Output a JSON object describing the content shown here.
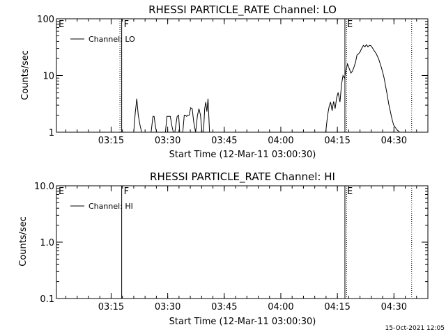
{
  "footer": {
    "timestamp": "15-Oct-2021 12:05"
  },
  "chart_data": [
    {
      "type": "line",
      "title": "RHESSI PARTICLE_RATE Channel: LO",
      "xlabel": "Start Time (12-Mar-11 03:00:30)",
      "ylabel": "Counts/sec",
      "x_unit": "minutes after 03:00:30",
      "x_range": [
        0,
        98.5
      ],
      "x_ticks": [
        {
          "label": "03:15",
          "x": 14.5
        },
        {
          "label": "03:30",
          "x": 29.5
        },
        {
          "label": "03:45",
          "x": 44.5
        },
        {
          "label": "04:00",
          "x": 59.5
        },
        {
          "label": "04:15",
          "x": 74.5
        },
        {
          "label": "04:30",
          "x": 89.5
        }
      ],
      "y_scale": "log",
      "ylim": [
        1,
        100
      ],
      "y_ticks": [
        "1",
        "10",
        "100"
      ],
      "legend": {
        "entry": "Channel: LO",
        "placement": "top-left"
      },
      "markers": [
        {
          "label": "E",
          "x": 0,
          "style": "none"
        },
        {
          "label": "F",
          "x": 17.3,
          "style": "dotted+solid"
        },
        {
          "label": "E",
          "x": 76.5,
          "style": "solid+dotted"
        },
        {
          "label": "",
          "x": 94.2,
          "style": "dotted"
        }
      ],
      "series": [
        {
          "name": "Channel: LO",
          "x": [
            20.5,
            20.9,
            21.3,
            21.7,
            22.2,
            22.6,
            25.1,
            25.6,
            25.9,
            26.3,
            26.6,
            28.9,
            29.3,
            30.2,
            30.6,
            31.0,
            31.4,
            32.0,
            32.4,
            32.7,
            33.5,
            33.9,
            34.2,
            34.5,
            34.8,
            35.2,
            35.6,
            36.0,
            36.4,
            36.9,
            37.4,
            37.8,
            38.2,
            38.6,
            39.0,
            39.3,
            39.6,
            39.9,
            40.2,
            40.6,
            71.4,
            71.9,
            72.3,
            72.7,
            73.1,
            73.5,
            73.9,
            74.3,
            74.7,
            75.2,
            75.6,
            76.0,
            76.4,
            76.8,
            77.2,
            77.6,
            78.1,
            78.5,
            78.9,
            79.3,
            79.7,
            80.1,
            80.5,
            81.0,
            81.4,
            81.8,
            82.2,
            82.6,
            83.0,
            83.4,
            83.9,
            84.3,
            84.7,
            85.1,
            85.5,
            86.0,
            86.5,
            86.9,
            87.3,
            87.7,
            88.1,
            88.5,
            88.9,
            89.2,
            89.5,
            89.9,
            90.3,
            90.7,
            91.0
          ],
          "y": [
            1,
            2.2,
            3.9,
            2.0,
            1.3,
            1,
            1,
            1.9,
            1.9,
            1.2,
            1,
            1,
            1.9,
            1.9,
            1.3,
            1,
            1,
            1.9,
            2.0,
            1,
            1,
            2.0,
            2.0,
            1.9,
            2.0,
            2.0,
            2.7,
            2.6,
            1.5,
            1,
            2.0,
            2.6,
            2.0,
            1,
            1,
            2.6,
            3.4,
            2.3,
            3.9,
            1,
            1,
            2.0,
            2.8,
            3.4,
            2.4,
            3.5,
            2.6,
            4.0,
            5.0,
            3.4,
            7.0,
            10.0,
            9.0,
            12.5,
            16.0,
            13.5,
            11.0,
            12.0,
            14.0,
            17.0,
            23.0,
            24.0,
            26.0,
            30.5,
            34.0,
            32.0,
            35.0,
            32.0,
            34.0,
            33.5,
            30.0,
            27.0,
            25.0,
            22.0,
            19.0,
            15.0,
            11.5,
            9.0,
            6.4,
            4.6,
            3.2,
            2.4,
            1.8,
            1.5,
            1.3,
            1.2,
            1.1,
            1.05,
            1
          ]
        }
      ]
    },
    {
      "type": "line",
      "title": "RHESSI PARTICLE_RATE Channel: HI",
      "xlabel": "Start Time (12-Mar-11 03:00:30)",
      "ylabel": "Counts/sec",
      "x_unit": "minutes after 03:00:30",
      "x_range": [
        0,
        98.5
      ],
      "x_ticks": [
        {
          "label": "03:15",
          "x": 14.5
        },
        {
          "label": "03:30",
          "x": 29.5
        },
        {
          "label": "03:45",
          "x": 44.5
        },
        {
          "label": "04:00",
          "x": 59.5
        },
        {
          "label": "04:15",
          "x": 74.5
        },
        {
          "label": "04:30",
          "x": 89.5
        }
      ],
      "y_scale": "log",
      "ylim": [
        0.1,
        10
      ],
      "y_ticks": [
        "0.1",
        "1.0",
        "10.0"
      ],
      "legend": {
        "entry": "Channel: HI",
        "placement": "top-left"
      },
      "markers": [
        {
          "label": "E",
          "x": 0,
          "style": "none"
        },
        {
          "label": "F",
          "x": 17.3,
          "style": "solid"
        },
        {
          "label": "E",
          "x": 76.5,
          "style": "solid+dotted"
        },
        {
          "label": "",
          "x": 94.2,
          "style": "dotted"
        }
      ],
      "series": [
        {
          "name": "Channel: HI",
          "x": [],
          "y": []
        }
      ]
    }
  ]
}
